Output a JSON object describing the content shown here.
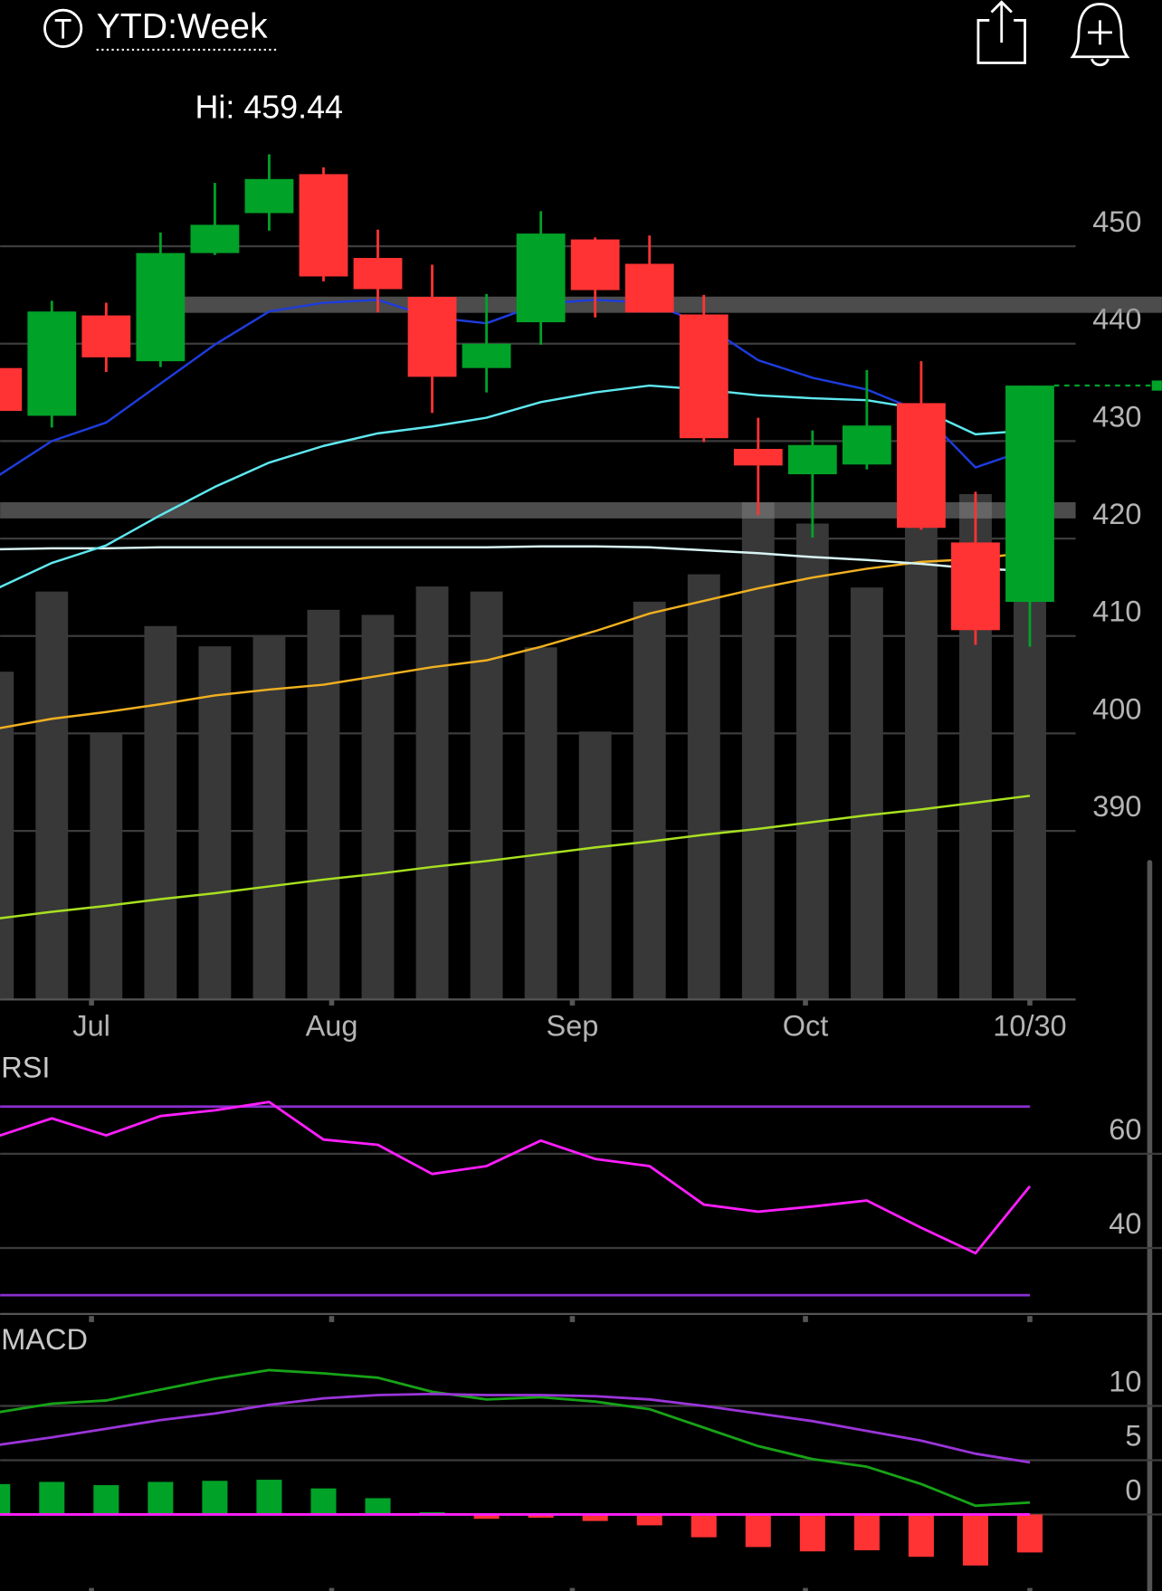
{
  "header": {
    "title": "YTD:Week"
  },
  "chart_data": [
    {
      "type": "candlestick",
      "annotation": "Hi: 459.44",
      "x": [
        0,
        1,
        2,
        3,
        4,
        5,
        6,
        7,
        8,
        9,
        10,
        11,
        12,
        13,
        14,
        15,
        16,
        17,
        18,
        19
      ],
      "open": [
        437.5,
        432.6,
        442.9,
        438.2,
        449.3,
        453.4,
        457.4,
        448.8,
        444.8,
        437.5,
        442.2,
        450.7,
        448.2,
        443.0,
        429.2,
        426.6,
        427.6,
        433.9,
        419.6,
        413.5
      ],
      "high": [
        438.0,
        444.4,
        444.2,
        451.4,
        456.5,
        459.44,
        458.1,
        451.7,
        448.1,
        445.1,
        453.6,
        450.9,
        451.1,
        445.0,
        432.4,
        431.1,
        437.3,
        438.2,
        424.8,
        435.7
      ],
      "low": [
        432.0,
        431.4,
        437.1,
        437.6,
        449.1,
        451.6,
        446.4,
        443.2,
        432.9,
        435.0,
        439.9,
        442.7,
        443.2,
        429.9,
        422.4,
        420.1,
        427.1,
        420.9,
        409.1,
        408.9
      ],
      "close": [
        433.1,
        443.3,
        438.6,
        449.3,
        452.2,
        456.9,
        446.9,
        445.6,
        436.6,
        440.0,
        451.3,
        445.5,
        443.2,
        430.3,
        427.5,
        429.6,
        431.6,
        421.1,
        410.6,
        435.7
      ],
      "up_color": "#00a228",
      "down_color": "#ff3334",
      "volume": [
        323,
        402,
        262,
        368,
        348,
        359,
        384,
        379,
        407,
        402,
        347,
        264,
        392,
        419,
        490,
        469,
        406,
        475,
        498,
        470
      ],
      "volume_color": "#383838",
      "volume_ylim": [
        0,
        600
      ],
      "overlays": [
        {
          "color": "#a8e020",
          "values": [
            381.0,
            381.7,
            382.3,
            383.0,
            383.6,
            384.3,
            385.0,
            385.6,
            386.3,
            386.9,
            387.6,
            388.3,
            388.9,
            389.6,
            390.2,
            390.9,
            391.6,
            392.2,
            392.9,
            393.6
          ]
        },
        {
          "color": "#f0b020",
          "values": [
            400.5,
            401.5,
            402.2,
            403.0,
            403.9,
            404.5,
            405.0,
            405.9,
            406.8,
            407.5,
            408.9,
            410.5,
            412.3,
            413.6,
            414.9,
            416.0,
            416.9,
            417.6,
            417.9,
            418.6
          ]
        },
        {
          "color": "#d8f4f4",
          "values": [
            418.9,
            419.0,
            419.0,
            419.1,
            419.1,
            419.1,
            419.1,
            419.1,
            419.1,
            419.1,
            419.2,
            419.2,
            419.1,
            418.8,
            418.5,
            418.1,
            417.8,
            417.4,
            416.9,
            416.7
          ]
        },
        {
          "color": "#5ee8f0",
          "values": [
            414.9,
            417.5,
            419.3,
            422.4,
            425.3,
            427.8,
            429.5,
            430.8,
            431.5,
            432.4,
            434.0,
            435.0,
            435.7,
            435.3,
            434.7,
            434.4,
            434.2,
            433.3,
            430.7,
            431.1
          ]
        },
        {
          "color": "#1e3cdc",
          "values": [
            426.4,
            430.0,
            431.9,
            435.9,
            439.9,
            443.3,
            444.2,
            444.5,
            442.7,
            442.1,
            444.1,
            444.5,
            444.2,
            442.0,
            438.3,
            436.5,
            435.3,
            433.0,
            427.3,
            429.2
          ]
        }
      ],
      "levels": [
        444.0,
        422.9
      ],
      "xlim": [
        0.048,
        21.43
      ],
      "xticks": [
        {
          "value": 1.73,
          "label": "Jul"
        },
        {
          "value": 6.15,
          "label": "Aug"
        },
        {
          "value": 10.58,
          "label": "Sep"
        },
        {
          "value": 14.87,
          "label": "Oct"
        },
        {
          "value": 19,
          "label": "10/30"
        }
      ],
      "ylim": [
        372.7,
        465.9
      ],
      "yticks": [
        390,
        400,
        410,
        420,
        430,
        440,
        450
      ],
      "grid": true
    },
    {
      "type": "line",
      "title": "RSI",
      "x": [
        0,
        1,
        2,
        3,
        4,
        5,
        6,
        7,
        8,
        9,
        10,
        11,
        12,
        13,
        14,
        15,
        16,
        17,
        18,
        19
      ],
      "series": [
        {
          "color": "#ff1eff",
          "values": [
            63.7,
            67.5,
            63.9,
            68.0,
            69.2,
            71.0,
            63.0,
            61.9,
            55.7,
            57.4,
            62.8,
            58.9,
            57.4,
            49.2,
            47.7,
            48.8,
            50.1,
            44.3,
            38.9,
            53.1
          ]
        }
      ],
      "levels": [
        70,
        30
      ],
      "level_color": "#8a2fd0",
      "xlim": [
        0.048,
        21.43
      ],
      "ylim": [
        26.0,
        80.9
      ],
      "yticks": [
        40,
        60
      ],
      "grid": true
    },
    {
      "type": "macd",
      "title": "MACD",
      "x": [
        0,
        1,
        2,
        3,
        4,
        5,
        6,
        7,
        8,
        9,
        10,
        11,
        12,
        13,
        14,
        15,
        16,
        17,
        18,
        19
      ],
      "series": [
        {
          "color": "#17a317",
          "values": [
            9.4,
            10.2,
            10.5,
            11.5,
            12.5,
            13.3,
            13.0,
            12.6,
            11.3,
            10.6,
            10.8,
            10.4,
            9.7,
            8.0,
            6.3,
            5.1,
            4.4,
            2.8,
            0.8,
            1.1
          ]
        },
        {
          "color": "#9a35d8",
          "values": [
            6.4,
            7.1,
            7.9,
            8.7,
            9.3,
            10.1,
            10.7,
            11.0,
            11.1,
            11.0,
            11.0,
            10.9,
            10.6,
            10.0,
            9.3,
            8.6,
            7.7,
            6.8,
            5.6,
            4.8
          ]
        }
      ],
      "histogram": [
        2.8,
        3.0,
        2.7,
        3.0,
        3.1,
        3.2,
        2.4,
        1.5,
        0.2,
        -0.4,
        -0.3,
        -0.6,
        -1.0,
        -2.1,
        -3.0,
        -3.4,
        -3.3,
        -3.9,
        -4.7,
        -3.5
      ],
      "up_color": "#00a228",
      "down_color": "#ff3334",
      "zero_color": "#ff1eff",
      "xlim": [
        0.048,
        21.43
      ],
      "ylim": [
        -7.05,
        18.0
      ],
      "yticks": [
        0,
        5,
        10
      ],
      "grid": true
    }
  ]
}
